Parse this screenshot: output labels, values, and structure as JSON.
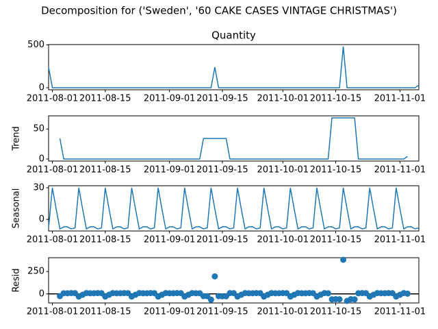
{
  "chart_data": {
    "type": "decomposition",
    "title": "Decomposition for ('Sweden', '60 CAKE CASES VINTAGE CHRISTMAS')",
    "color": "#1f77b4",
    "x": [
      "2011-07-31",
      "2011-08-01",
      "2011-08-02",
      "2011-08-03",
      "2011-08-04",
      "2011-08-05",
      "2011-08-06",
      "2011-08-07",
      "2011-08-08",
      "2011-08-09",
      "2011-08-10",
      "2011-08-11",
      "2011-08-12",
      "2011-08-13",
      "2011-08-14",
      "2011-08-15",
      "2011-08-16",
      "2011-08-17",
      "2011-08-18",
      "2011-08-19",
      "2011-08-20",
      "2011-08-21",
      "2011-08-22",
      "2011-08-23",
      "2011-08-24",
      "2011-08-25",
      "2011-08-26",
      "2011-08-27",
      "2011-08-28",
      "2011-08-29",
      "2011-08-30",
      "2011-08-31",
      "2011-09-01",
      "2011-09-02",
      "2011-09-03",
      "2011-09-04",
      "2011-09-05",
      "2011-09-06",
      "2011-09-07",
      "2011-09-08",
      "2011-09-09",
      "2011-09-10",
      "2011-09-11",
      "2011-09-12",
      "2011-09-13",
      "2011-09-14",
      "2011-09-15",
      "2011-09-16",
      "2011-09-17",
      "2011-09-18",
      "2011-09-19",
      "2011-09-20",
      "2011-09-21",
      "2011-09-22",
      "2011-09-23",
      "2011-09-24",
      "2011-09-25",
      "2011-09-26",
      "2011-09-27",
      "2011-09-28",
      "2011-09-29",
      "2011-09-30",
      "2011-10-01",
      "2011-10-02",
      "2011-10-03",
      "2011-10-04",
      "2011-10-05",
      "2011-10-06",
      "2011-10-07",
      "2011-10-08",
      "2011-10-09",
      "2011-10-10",
      "2011-10-11",
      "2011-10-12",
      "2011-10-13",
      "2011-10-14",
      "2011-10-15",
      "2011-10-16",
      "2011-10-17",
      "2011-10-18",
      "2011-10-19",
      "2011-10-20",
      "2011-10-21",
      "2011-10-22",
      "2011-10-23",
      "2011-10-24",
      "2011-10-25",
      "2011-10-26",
      "2011-10-27",
      "2011-10-28",
      "2011-10-29",
      "2011-10-30",
      "2011-10-31",
      "2011-11-01",
      "2011-11-02",
      "2011-11-03",
      "2011-11-04",
      "2011-11-05",
      "2011-11-06"
    ],
    "xlim": [
      "2011-07-31",
      "2011-11-06"
    ],
    "xticks": [
      "2011-08-01",
      "2011-08-15",
      "2011-09-01",
      "2011-09-15",
      "2011-10-01",
      "2011-10-15",
      "2011-11-01"
    ],
    "panels": [
      {
        "type": "line",
        "title": "Quantity",
        "ylim": [
          -24,
          504
        ],
        "yticks": [
          0,
          500
        ],
        "values": [
          240,
          0,
          0,
          0,
          0,
          0,
          0,
          0,
          0,
          0,
          0,
          0,
          0,
          0,
          0,
          0,
          0,
          0,
          0,
          0,
          0,
          0,
          0,
          0,
          0,
          0,
          0,
          0,
          0,
          0,
          0,
          0,
          0,
          0,
          0,
          0,
          0,
          0,
          0,
          0,
          0,
          0,
          0,
          0,
          240,
          0,
          0,
          0,
          0,
          0,
          0,
          0,
          0,
          0,
          0,
          0,
          0,
          0,
          0,
          0,
          0,
          0,
          0,
          0,
          0,
          0,
          0,
          0,
          0,
          0,
          0,
          0,
          0,
          0,
          0,
          0,
          0,
          0,
          480,
          0,
          0,
          0,
          0,
          0,
          0,
          0,
          0,
          0,
          0,
          0,
          0,
          0,
          0,
          0,
          0,
          0,
          0,
          0,
          30
        ]
      },
      {
        "type": "line",
        "ylabel": "Trend",
        "ylim": [
          -3.43,
          72
        ],
        "yticks": [
          0,
          50
        ],
        "values": [
          null,
          null,
          null,
          34.29,
          0,
          0,
          0,
          0,
          0,
          0,
          0,
          0,
          0,
          0,
          0,
          0,
          0,
          0,
          0,
          0,
          0,
          0,
          0,
          0,
          0,
          0,
          0,
          0,
          0,
          0,
          0,
          0,
          0,
          0,
          0,
          0,
          0,
          0,
          0,
          0,
          0,
          34.29,
          34.29,
          34.29,
          34.29,
          34.29,
          34.29,
          34.29,
          0,
          0,
          0,
          0,
          0,
          0,
          0,
          0,
          0,
          0,
          0,
          0,
          0,
          0,
          0,
          0,
          0,
          0,
          0,
          0,
          0,
          0,
          0,
          0,
          0,
          0,
          0,
          68.57,
          68.57,
          68.57,
          68.57,
          68.57,
          68.57,
          68.57,
          0,
          0,
          0,
          0,
          0,
          0,
          0,
          0,
          0,
          0,
          0,
          0,
          0,
          4.29,
          null,
          null,
          null
        ]
      },
      {
        "type": "line",
        "ylabel": "Seasonal",
        "ylim": [
          -10.95,
          31.95
        ],
        "yticks": [
          0,
          30
        ],
        "values": [
          -8,
          30,
          10,
          -9,
          -7,
          -7,
          -9,
          -8,
          30,
          10,
          -9,
          -7,
          -7,
          -9,
          -8,
          30,
          10,
          -9,
          -7,
          -7,
          -9,
          -8,
          30,
          10,
          -9,
          -7,
          -7,
          -9,
          -8,
          30,
          10,
          -9,
          -7,
          -7,
          -9,
          -8,
          30,
          10,
          -9,
          -7,
          -7,
          -9,
          -8,
          30,
          10,
          -9,
          -7,
          -7,
          -9,
          -8,
          30,
          10,
          -9,
          -7,
          -7,
          -9,
          -8,
          30,
          10,
          -9,
          -7,
          -7,
          -9,
          -8,
          30,
          10,
          -9,
          -7,
          -7,
          -9,
          -8,
          30,
          10,
          -9,
          -7,
          -7,
          -9,
          -8,
          30,
          10,
          -9,
          -7,
          -7,
          -9,
          -8,
          30,
          10,
          -9,
          -7,
          -7,
          -9,
          -8,
          30,
          10,
          -9,
          -7,
          -7,
          -9,
          -8
        ]
      },
      {
        "type": "scatter",
        "ylabel": "Resid",
        "ylim": [
          -101.57,
          404.43
        ],
        "yticks": [
          0,
          250
        ],
        "values": [
          null,
          null,
          null,
          -25.29,
          7,
          7,
          9,
          8,
          -30,
          -10,
          9,
          7,
          7,
          9,
          8,
          -30,
          -10,
          9,
          7,
          7,
          9,
          8,
          -30,
          -10,
          9,
          7,
          7,
          9,
          8,
          -30,
          -10,
          9,
          7,
          7,
          9,
          8,
          -30,
          -10,
          9,
          7,
          7,
          -25.29,
          -26.29,
          -64.29,
          195.71,
          -25.29,
          -27.29,
          -27.29,
          9,
          8,
          -30,
          -10,
          9,
          7,
          7,
          9,
          8,
          -30,
          -10,
          9,
          7,
          7,
          9,
          8,
          -30,
          -10,
          9,
          7,
          7,
          9,
          8,
          -30,
          -10,
          9,
          7,
          -61.57,
          -59.57,
          -60.57,
          381.43,
          -78.57,
          -59.57,
          -61.57,
          7,
          9,
          8,
          -30,
          -10,
          9,
          7,
          7,
          9,
          8,
          -30,
          -10,
          9,
          2.71,
          null,
          null,
          null
        ]
      }
    ]
  }
}
